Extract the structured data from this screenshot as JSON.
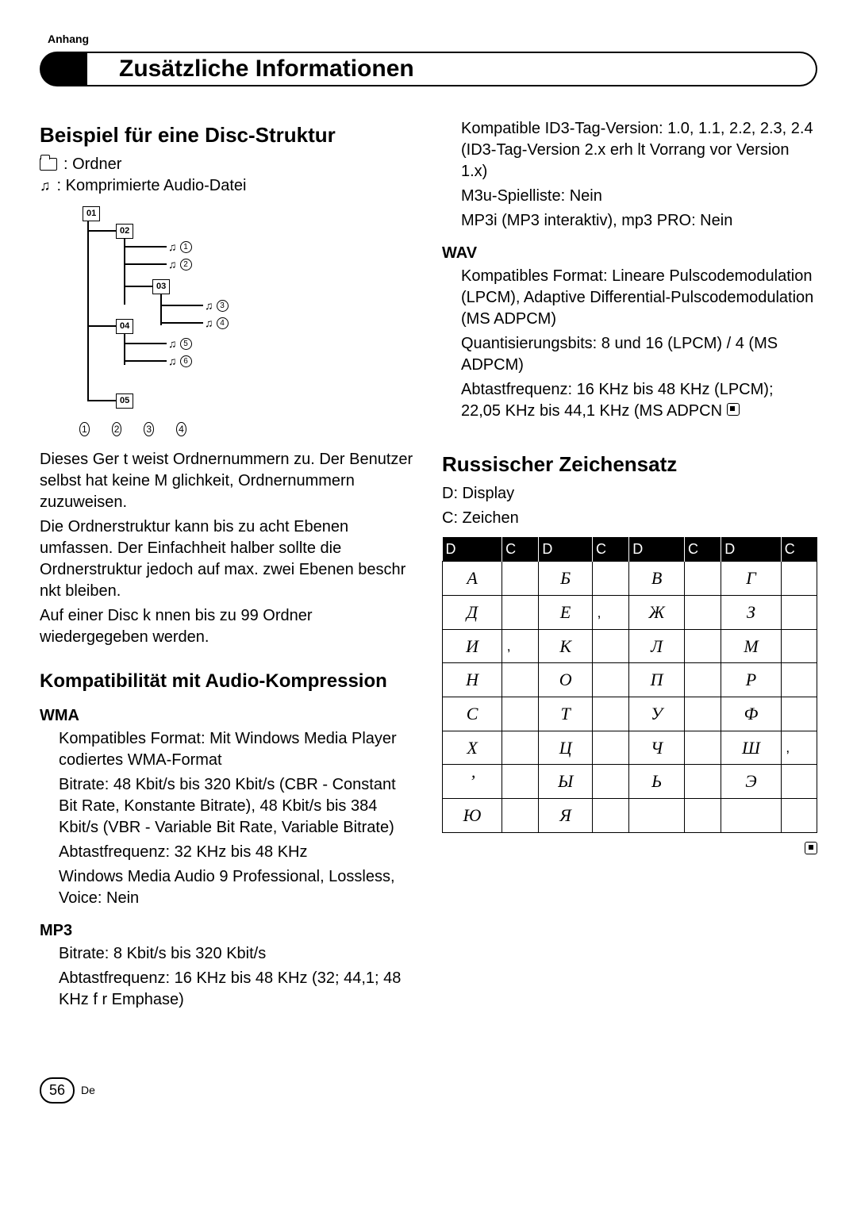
{
  "header": {
    "section": "Anhang",
    "title": "Zusätzliche Informationen"
  },
  "left": {
    "h_disc": "Beispiel für eine Disc-Struktur",
    "legend_folder": ": Ordner",
    "legend_file": ": Komprimierte Audio-Datei",
    "tree": {
      "folders": [
        "01",
        "02",
        "03",
        "04",
        "05"
      ],
      "files": [
        "1",
        "2",
        "3",
        "4",
        "5",
        "6"
      ],
      "layers": [
        "1",
        "2",
        "3",
        "4"
      ]
    },
    "para1": "Dieses Ger t weist Ordnernummern zu. Der Benutzer selbst hat keine M glichkeit, Ordnernummern zuzuweisen.",
    "para2": "Die Ordnerstruktur kann bis zu acht Ebenen umfassen. Der Einfachheit halber sollte die Ordnerstruktur jedoch auf max. zwei Ebenen beschr nkt bleiben.",
    "para3": "Auf einer Disc k nnen bis zu 99 Ordner wiedergegeben werden.",
    "h_compat": "Kompatibilität mit Audio-Kompression",
    "wma_h": "WMA",
    "wma_1": "Kompatibles Format: Mit Windows Media Player codiertes WMA-Format",
    "wma_2": "Bitrate: 48 Kbit/s bis 320 Kbit/s (CBR - Constant Bit Rate, Konstante Bitrate), 48 Kbit/s bis 384 Kbit/s (VBR - Variable Bit Rate, Variable Bitrate)",
    "wma_3": "Abtastfrequenz: 32 KHz bis 48 KHz",
    "wma_4": "Windows Media Audio 9 Professional, Lossless, Voice: Nein",
    "mp3_h": "MP3",
    "mp3_1": "Bitrate: 8 Kbit/s bis 320 Kbit/s",
    "mp3_2": "Abtastfrequenz: 16 KHz bis 48 KHz (32; 44,1; 48 KHz f r Emphase)"
  },
  "right": {
    "mp3_3": "Kompatible ID3-Tag-Version: 1.0, 1.1, 2.2, 2.3, 2.4 (ID3-Tag-Version 2.x erh lt Vorrang vor Version 1.x)",
    "mp3_4": "M3u-Spielliste: Nein",
    "mp3_5": "MP3i (MP3 interaktiv), mp3 PRO: Nein",
    "wav_h": "WAV",
    "wav_1": "Kompatibles Format: Lineare Pulscodemodulation (LPCM), Adaptive Differential-Pulscodemodulation (MS ADPCM)",
    "wav_2": "Quantisierungsbits: 8 und 16 (LPCM) / 4 (MS ADPCM)",
    "wav_3": "Abtastfrequenz: 16 KHz bis 48 KHz (LPCM); 22,05 KHz bis 44,1 KHz (MS ADPCN",
    "h_russ": "Russischer Zeichensatz",
    "legend_d": "D: Display",
    "legend_c": "C: Zeichen",
    "table": {
      "headers": [
        "D",
        "C",
        "D",
        "C",
        "D",
        "C",
        "D",
        "C"
      ],
      "rows": [
        [
          "А",
          "",
          "Б",
          "",
          "В",
          "",
          "Г",
          ""
        ],
        [
          "Д",
          "",
          "Е",
          "‚",
          "Ж",
          "",
          "З",
          ""
        ],
        [
          "И",
          "‚",
          "К",
          "",
          "Л",
          "",
          "М",
          ""
        ],
        [
          "Н",
          "",
          "О",
          "",
          "П",
          "",
          "Р",
          ""
        ],
        [
          "С",
          "",
          "Т",
          "",
          "У",
          "",
          "Ф",
          ""
        ],
        [
          "Х",
          "",
          "Ц",
          "",
          "Ч",
          "",
          "Ш",
          "‚"
        ],
        [
          "’",
          "",
          "Ы",
          "",
          "Ь",
          "",
          "Э",
          ""
        ],
        [
          "Ю",
          "",
          "Я",
          "",
          "",
          "",
          "",
          ""
        ]
      ]
    }
  },
  "footer": {
    "page": "56",
    "lang": "De"
  },
  "colors": {
    "bg": "#ffffff",
    "fg": "#000000"
  }
}
